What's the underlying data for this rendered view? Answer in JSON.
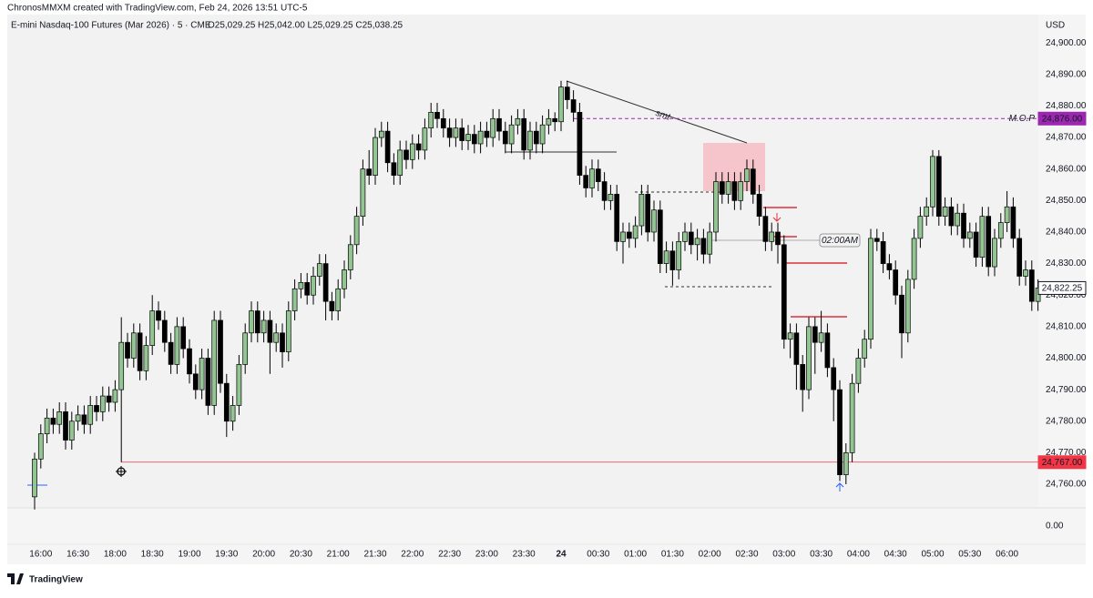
{
  "header": {
    "credit": "ChronosMMXM created with TradingView.com, Feb 24, 2026 13:51 UTC-5",
    "symbol": "E-mini Nasdaq-100 Futures (Mar 2026) · 5 · CME",
    "ohlc": "O25,029.25 H25,042.00 L25,029.25 C25,038.25",
    "currency": "USD"
  },
  "footer": {
    "brand": "TradingView"
  },
  "chart_data": {
    "type": "candlestick",
    "categories": [
      null,
      "16:00",
      null,
      null,
      null,
      null,
      null,
      "16:30",
      null,
      null,
      null,
      null,
      null,
      "18:00",
      null,
      null,
      null,
      null,
      null,
      "18:30",
      null,
      null,
      null,
      null,
      null,
      "19:00",
      null,
      null,
      null,
      null,
      null,
      "19:30",
      null,
      null,
      null,
      null,
      null,
      "20:00",
      null,
      null,
      null,
      null,
      null,
      "20:30",
      null,
      null,
      null,
      null,
      null,
      "21:00",
      null,
      null,
      null,
      null,
      null,
      "21:30",
      null,
      null,
      null,
      null,
      null,
      "22:00",
      null,
      null,
      null,
      null,
      null,
      "22:30",
      null,
      null,
      null,
      null,
      null,
      "23:00",
      null,
      null,
      null,
      null,
      null,
      "23:30",
      null,
      null,
      null,
      null,
      null,
      "24",
      null,
      null,
      null,
      null,
      null,
      "00:30",
      null,
      null,
      null,
      null,
      null,
      "01:00",
      null,
      null,
      null,
      null,
      null,
      "01:30",
      null,
      null,
      null,
      null,
      null,
      "02:00",
      null,
      null,
      null,
      null,
      null,
      "02:30",
      null,
      null,
      null,
      null,
      null,
      "03:00",
      null,
      null,
      null,
      null,
      null,
      "03:30",
      null,
      null,
      null,
      null,
      null,
      "04:00",
      null,
      null,
      null,
      null,
      null,
      "04:30",
      null,
      null,
      null,
      null,
      null,
      "05:00",
      null,
      null,
      null,
      null,
      null,
      "05:30",
      null,
      null,
      null,
      null,
      null,
      "06:00",
      null,
      null,
      null,
      null,
      null
    ],
    "open": [
      24756,
      24768,
      24776,
      24781,
      24779,
      24783,
      24774,
      24780,
      24782,
      24779,
      24785,
      24783,
      24788,
      24786,
      24790,
      24805,
      24800,
      24808,
      24796,
      24804,
      24815,
      24812,
      24805,
      24798,
      24810,
      24803,
      24795,
      24790,
      24800,
      24785,
      24812,
      24792,
      24780,
      24785,
      24798,
      24808,
      24815,
      24808,
      24812,
      24805,
      24808,
      24802,
      24815,
      24822,
      24824,
      24820,
      24826,
      24830,
      24818,
      24815,
      24822,
      24828,
      24836,
      24845,
      24860,
      24858,
      24870,
      24872,
      24862,
      24858,
      24866,
      24863,
      24868,
      24866,
      24873,
      24878,
      24876,
      24873,
      24870,
      24873,
      24869,
      24871,
      24868,
      24872,
      24870,
      24876,
      24872,
      24868,
      24874,
      24876,
      24866,
      24872,
      24868,
      24874,
      24876,
      24875,
      24886,
      24882,
      24878,
      24858,
      24854,
      24860,
      24856,
      24850,
      24852,
      24837,
      24840,
      24838,
      24842,
      24852,
      24840,
      24847,
      24830,
      24834,
      24828,
      24837,
      24840,
      24836,
      24838,
      24833,
      24840,
      24856,
      24852,
      24856,
      24850,
      24856,
      24860,
      24852,
      24845,
      24837,
      24840,
      24836,
      24806,
      24808,
      24798,
      24790,
      24810,
      24805,
      24808,
      24797,
      24790,
      24763,
      24770,
      24792,
      24800,
      24806,
      24838,
      24837,
      24830,
      24828,
      24820,
      24808,
      24825,
      24838,
      24845,
      24848,
      24864,
      24845,
      24848,
      24842,
      24846,
      24838,
      24840,
      24832,
      24845,
      24829,
      24838,
      24843,
      24848,
      24838,
      24826,
      24828,
      24818
    ],
    "high": [
      24770,
      24779,
      24784,
      24784,
      24786,
      24786,
      24783,
      24785,
      24785,
      24788,
      24788,
      24791,
      24791,
      24793,
      24813,
      24808,
      24811,
      24811,
      24807,
      24820,
      24818,
      24815,
      24808,
      24813,
      24813,
      24806,
      24798,
      24803,
      24803,
      24815,
      24815,
      24795,
      24788,
      24801,
      24811,
      24818,
      24818,
      24815,
      24815,
      24811,
      24811,
      24818,
      24825,
      24827,
      24827,
      24829,
      24833,
      24833,
      24821,
      24825,
      24831,
      24839,
      24848,
      24863,
      24866,
      24873,
      24875,
      24875,
      24865,
      24869,
      24869,
      24871,
      24871,
      24876,
      24881,
      24881,
      24879,
      24876,
      24876,
      24876,
      24874,
      24874,
      24875,
      24875,
      24879,
      24879,
      24875,
      24877,
      24879,
      24879,
      24875,
      24875,
      24877,
      24879,
      24878,
      24888,
      24888,
      24885,
      24881,
      24861,
      24863,
      24863,
      24859,
      24855,
      24855,
      24843,
      24843,
      24845,
      24855,
      24855,
      24850,
      24850,
      24837,
      24837,
      24840,
      24843,
      24843,
      24841,
      24841,
      24843,
      24859,
      24859,
      24859,
      24859,
      24859,
      24863,
      24863,
      24855,
      24848,
      24843,
      24843,
      24839,
      24811,
      24811,
      24801,
      24813,
      24813,
      24815,
      24811,
      24800,
      24793,
      24773,
      24795,
      24803,
      24809,
      24841,
      24841,
      24840,
      24833,
      24831,
      24823,
      24828,
      24841,
      24848,
      24851,
      24866,
      24866,
      24851,
      24851,
      24849,
      24849,
      24843,
      24843,
      24848,
      24848,
      24841,
      24846,
      24853,
      24851,
      24841,
      24831,
      24831,
      24825
    ],
    "low": [
      24752,
      24765,
      24773,
      24776,
      24776,
      24771,
      24771,
      24777,
      24776,
      24776,
      24780,
      24780,
      24783,
      24783,
      24767,
      24797,
      24797,
      24793,
      24793,
      24801,
      24809,
      24802,
      24795,
      24795,
      24800,
      24792,
      24787,
      24787,
      24782,
      24782,
      24789,
      24775,
      24777,
      24782,
      24795,
      24805,
      24805,
      24805,
      24795,
      24802,
      24797,
      24799,
      24812,
      24819,
      24817,
      24817,
      24823,
      24812,
      24812,
      24812,
      24819,
      24825,
      24833,
      24842,
      24855,
      24855,
      24867,
      24859,
      24855,
      24855,
      24860,
      24860,
      24863,
      24863,
      24870,
      24873,
      24870,
      24867,
      24867,
      24866,
      24866,
      24865,
      24865,
      24867,
      24867,
      24869,
      24865,
      24865,
      24871,
      24863,
      24863,
      24865,
      24865,
      24871,
      24872,
      24872,
      24879,
      24875,
      24855,
      24851,
      24851,
      24853,
      24847,
      24847,
      24834,
      24830,
      24835,
      24835,
      24839,
      24837,
      24837,
      24827,
      24827,
      24823,
      24825,
      24834,
      24833,
      24831,
      24830,
      24830,
      24837,
      24849,
      24849,
      24847,
      24847,
      24853,
      24849,
      24842,
      24834,
      24834,
      24830,
      24803,
      24800,
      24790,
      24783,
      24787,
      24795,
      24802,
      24794,
      24780,
      24761,
      24760,
      24767,
      24789,
      24797,
      24803,
      24834,
      24827,
      24825,
      24817,
      24800,
      24805,
      24822,
      24835,
      24842,
      24845,
      24842,
      24842,
      24839,
      24839,
      24835,
      24835,
      24829,
      24829,
      24826,
      24826,
      24835,
      24840,
      24835,
      24823,
      24823,
      24815,
      24815
    ],
    "close": [
      24768,
      24776,
      24781,
      24779,
      24783,
      24774,
      24780,
      24782,
      24779,
      24785,
      24783,
      24788,
      24786,
      24790,
      24805,
      24800,
      24808,
      24796,
      24804,
      24815,
      24812,
      24805,
      24798,
      24810,
      24803,
      24795,
      24790,
      24800,
      24785,
      24812,
      24792,
      24780,
      24785,
      24798,
      24808,
      24815,
      24808,
      24812,
      24805,
      24808,
      24802,
      24815,
      24822,
      24824,
      24820,
      24826,
      24830,
      24818,
      24815,
      24822,
      24828,
      24836,
      24845,
      24860,
      24858,
      24870,
      24872,
      24862,
      24858,
      24866,
      24863,
      24868,
      24866,
      24873,
      24878,
      24876,
      24873,
      24870,
      24873,
      24869,
      24871,
      24868,
      24872,
      24870,
      24876,
      24872,
      24868,
      24874,
      24876,
      24866,
      24872,
      24868,
      24874,
      24876,
      24875,
      24886,
      24882,
      24878,
      24858,
      24854,
      24860,
      24856,
      24850,
      24852,
      24837,
      24840,
      24838,
      24842,
      24852,
      24840,
      24847,
      24830,
      24834,
      24828,
      24837,
      24840,
      24836,
      24838,
      24833,
      24840,
      24856,
      24852,
      24856,
      24850,
      24856,
      24860,
      24852,
      24845,
      24837,
      24840,
      24836,
      24806,
      24808,
      24798,
      24790,
      24810,
      24805,
      24808,
      24797,
      24790,
      24763,
      24770,
      24792,
      24800,
      24806,
      24838,
      24837,
      24830,
      24828,
      24820,
      24808,
      24825,
      24838,
      24845,
      24848,
      24864,
      24845,
      24848,
      24842,
      24846,
      24838,
      24840,
      24832,
      24845,
      24829,
      24838,
      24843,
      24848,
      24838,
      24826,
      24828,
      24818,
      24822.25
    ],
    "up_color": "#93c593",
    "down_color": "#000000",
    "ylim": [
      24752.5,
      24909
    ],
    "yticks": [
      {
        "value": 24760,
        "label": "24,760.00"
      },
      {
        "value": 24770,
        "label": "24,770.00"
      },
      {
        "value": 24780,
        "label": "24,780.00"
      },
      {
        "value": 24790,
        "label": "24,790.00"
      },
      {
        "value": 24800,
        "label": "24,800.00"
      },
      {
        "value": 24810,
        "label": "24,810.00"
      },
      {
        "value": 24820,
        "label": "24,820.00"
      },
      {
        "value": 24830,
        "label": "24,830.00"
      },
      {
        "value": 24840,
        "label": "24,840.00"
      },
      {
        "value": 24850,
        "label": "24,850.00"
      },
      {
        "value": 24860,
        "label": "24,860.00"
      },
      {
        "value": 24870,
        "label": "24,870.00"
      },
      {
        "value": 24880,
        "label": "24,880.00"
      },
      {
        "value": 24890,
        "label": "24,890.00"
      },
      {
        "value": 24900,
        "label": "24,900.00"
      }
    ],
    "grid": false,
    "price_tags": [
      {
        "value": 24876,
        "label": "24,876.00",
        "color": "#9c27b0"
      },
      {
        "value": 24822.25,
        "label": "24,822.25",
        "color": "#ffffff"
      },
      {
        "value": 24767,
        "label": "24,767.00",
        "color": "#f23645"
      }
    ],
    "annotations": {
      "mop": "M.O.P",
      "smt": "smt",
      "time_label": "02:00AM"
    },
    "lower_pane_label": "0.00"
  }
}
